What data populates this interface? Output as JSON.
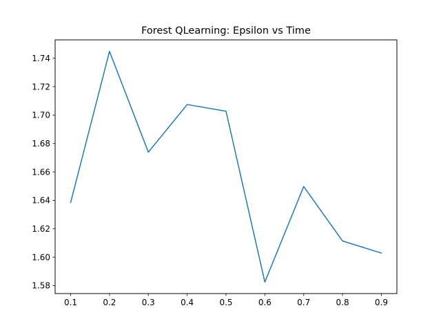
{
  "chart_data": {
    "type": "line",
    "title": "Forest QLearning: Epsilon vs Time",
    "xlabel": "",
    "ylabel": "",
    "x": [
      0.1,
      0.2,
      0.3,
      0.4,
      0.5,
      0.6,
      0.7,
      0.8,
      0.9
    ],
    "series": [
      {
        "values": [
          1.6385,
          1.7448,
          1.6739,
          1.7074,
          1.7027,
          1.5825,
          1.6497,
          1.6114,
          1.6029
        ],
        "color": "#1f77b4"
      }
    ],
    "x_ticks": [
      "0.1",
      "0.2",
      "0.3",
      "0.4",
      "0.5",
      "0.6",
      "0.7",
      "0.8",
      "0.9"
    ],
    "y_ticks": [
      "1.58",
      "1.60",
      "1.62",
      "1.64",
      "1.66",
      "1.68",
      "1.70",
      "1.72",
      "1.74"
    ],
    "xlim": [
      0.06,
      0.94
    ],
    "ylim": [
      1.5744,
      1.7529
    ],
    "grid": false,
    "legend": "none"
  }
}
